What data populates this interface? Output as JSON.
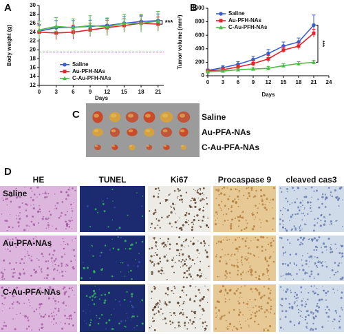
{
  "chart_data": [
    {
      "type": "line",
      "panel_label": "A",
      "x_label": "Days",
      "y_label": "Body weight (g)",
      "x": [
        0,
        3,
        6,
        9,
        12,
        15,
        18,
        21
      ],
      "xlim": [
        0,
        22
      ],
      "xticks": [
        0,
        3,
        6,
        9,
        12,
        15,
        18,
        21
      ],
      "ylim": [
        12,
        30
      ],
      "yticks": [
        12,
        14,
        16,
        18,
        20,
        22,
        24,
        26,
        28,
        30
      ],
      "ref_line": 19.5,
      "ref_color": "#4cbb47",
      "annotation": "***",
      "legend": "lower center",
      "series": [
        {
          "name": "Saline",
          "color": "#3a5fcd",
          "marker": "circle",
          "values": [
            24.2,
            25,
            25.1,
            25.3,
            25.5,
            26,
            26.4,
            26.6
          ],
          "errors": [
            1.5,
            1.6,
            1.5,
            1.4,
            1.6,
            1.5,
            1.4,
            1.5
          ]
        },
        {
          "name": "Au-PFH-NAs",
          "color": "#e3242b",
          "marker": "square",
          "values": [
            24,
            23.8,
            24,
            24.5,
            25,
            25.5,
            26,
            25.8
          ],
          "errors": [
            1.4,
            1.5,
            1.6,
            1.5,
            1.7,
            1.5,
            1.6,
            1.6
          ]
        },
        {
          "name": "C-Au-PFH-NAs",
          "color": "#4cbb47",
          "marker": "triangle",
          "values": [
            24.5,
            25.3,
            25,
            25.5,
            25.2,
            26,
            26,
            26.5
          ],
          "errors": [
            2,
            2,
            2,
            2.2,
            2,
            2,
            2,
            2.2
          ]
        }
      ]
    },
    {
      "type": "line",
      "panel_label": "B",
      "x_label": "Days",
      "y_label": "Tumor volume (mm³)",
      "x": [
        0,
        3,
        6,
        9,
        12,
        15,
        18,
        21
      ],
      "xlim": [
        0,
        24
      ],
      "xticks": [
        0,
        3,
        6,
        9,
        12,
        15,
        18,
        21,
        24
      ],
      "ylim": [
        0,
        1000
      ],
      "yticks": [
        0,
        200,
        400,
        600,
        800,
        1000
      ],
      "annotation": "***",
      "legend": "upper left",
      "series": [
        {
          "name": "Saline",
          "color": "#3a5fcd",
          "marker": "circle",
          "values": [
            80,
            120,
            170,
            240,
            330,
            440,
            500,
            750
          ],
          "errors": [
            20,
            30,
            40,
            50,
            60,
            60,
            60,
            150
          ]
        },
        {
          "name": "Au-PFH-NAs",
          "color": "#e3242b",
          "marker": "square",
          "values": [
            70,
            90,
            130,
            180,
            250,
            380,
            440,
            630
          ],
          "errors": [
            15,
            25,
            30,
            40,
            50,
            40,
            50,
            60
          ]
        },
        {
          "name": "C-Au-PFH-NAs",
          "color": "#4cbb47",
          "marker": "triangle",
          "values": [
            60,
            70,
            90,
            100,
            110,
            150,
            180,
            200
          ],
          "errors": [
            10,
            15,
            20,
            25,
            30,
            30,
            30,
            30
          ]
        }
      ]
    }
  ],
  "photo": {
    "panel_label": "C",
    "labels": [
      "Saline",
      "Au-PFA-NAs",
      "C-Au-PFA-NAs"
    ]
  },
  "histology": {
    "panel_label": "D",
    "columns": [
      "HE",
      "TUNEL",
      "Ki67",
      "Procaspase 9",
      "cleaved cas3"
    ],
    "rows": [
      "Saline",
      "Au-PFA-NAs",
      "C-Au-PFA-NAs"
    ]
  }
}
